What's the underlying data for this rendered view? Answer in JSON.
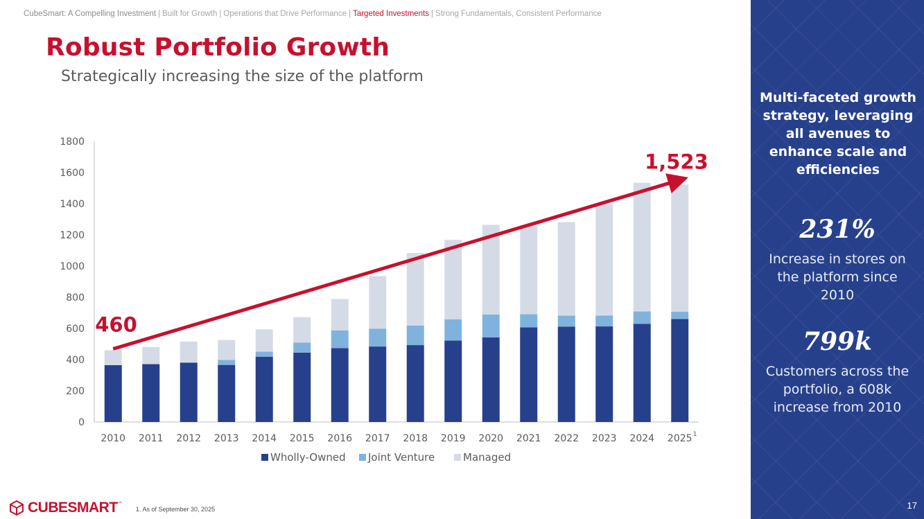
{
  "breadcrumb": {
    "items": [
      "CubeSmart: A Compelling Investment",
      "Built for Growth",
      "Operations that Drive Performance",
      "Targeted Investments",
      "Strong Fundamentals, Consistent Performance"
    ],
    "active_index": 3,
    "separator": "|"
  },
  "page_title": "Robust Portfolio Growth",
  "subtitle": "Strategically increasing the size of the platform",
  "chart_data": {
    "type": "bar",
    "stacked": true,
    "categories": [
      "2010",
      "2011",
      "2012",
      "2013",
      "2014",
      "2015",
      "2016",
      "2017",
      "2018",
      "2019",
      "2020",
      "2021",
      "2022",
      "2023",
      "2024",
      "2025"
    ],
    "category_footnotes": {
      "2025": "1"
    },
    "series": [
      {
        "name": "Wholly-Owned",
        "color": "#27408b",
        "values": [
          365,
          371,
          381,
          366,
          419,
          445,
          474,
          484,
          493,
          522,
          543,
          607,
          612,
          613,
          630,
          660
        ]
      },
      {
        "name": "Joint Venture",
        "color": "#7fb3de",
        "values": [
          0,
          0,
          0,
          32,
          32,
          64,
          114,
          115,
          126,
          137,
          147,
          84,
          70,
          70,
          79,
          48
        ]
      },
      {
        "name": "Managed",
        "color": "#d5dbe6",
        "values": [
          95,
          110,
          135,
          128,
          143,
          163,
          201,
          337,
          465,
          509,
          575,
          567,
          600,
          715,
          825,
          815
        ]
      }
    ],
    "ylim": [
      0,
      1800
    ],
    "yticks": [
      0,
      200,
      400,
      600,
      800,
      1000,
      1200,
      1400,
      1600,
      1800
    ],
    "legend_position": "bottom",
    "annotations": {
      "start_label": "460",
      "end_label": "1,523",
      "trend_color": "#c8102e"
    }
  },
  "side_panel": {
    "heading": "Multi-faceted growth strategy, leveraging all avenues to enhance scale and efficiencies",
    "stats": [
      {
        "value": "231%",
        "description": "Increase in stores on the platform since 2010"
      },
      {
        "value": "799k",
        "description": "Customers across the portfolio, a 608k increase from 2010"
      }
    ]
  },
  "footer": {
    "logo_text": "CUBESMART",
    "logo_mark": "™",
    "footnote": "1.   As of September 30, 2025",
    "page_number": "17"
  }
}
